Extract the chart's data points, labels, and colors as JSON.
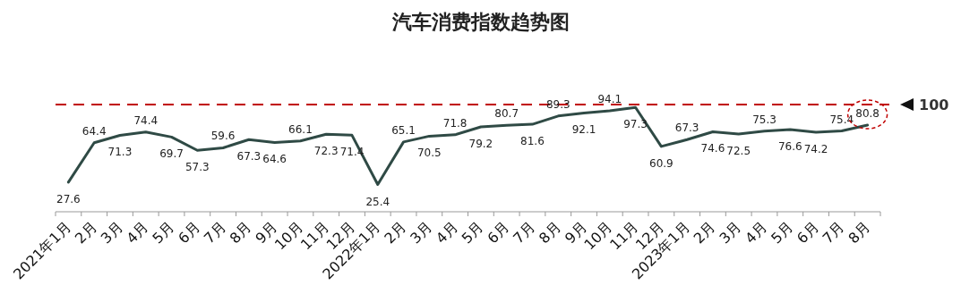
{
  "chart_data": {
    "type": "line",
    "title": "汽车消费指数趋势图",
    "categories": [
      "2021年1月",
      "2月",
      "3月",
      "4月",
      "5月",
      "6月",
      "7月",
      "8月",
      "9月",
      "10月",
      "11月",
      "12月",
      "2022年1月",
      "2月",
      "3月",
      "4月",
      "5月",
      "6月",
      "7月",
      "8月",
      "9月",
      "10月",
      "11月",
      "12月",
      "2023年1月",
      "2月",
      "3月",
      "4月",
      "5月",
      "6月",
      "7月",
      "8月"
    ],
    "values": [
      27.6,
      64.4,
      71.3,
      74.4,
      69.7,
      57.3,
      59.6,
      67.3,
      64.6,
      66.1,
      72.3,
      71.4,
      25.4,
      65.1,
      70.5,
      71.8,
      79.2,
      80.7,
      81.6,
      89.3,
      92.1,
      94.1,
      97.3,
      60.9,
      67.3,
      74.6,
      72.5,
      75.3,
      76.6,
      74.2,
      75.4,
      80.8
    ],
    "color": "#2f4a45",
    "data_labels": true,
    "tick_labels": "x",
    "ref_lines": [
      {
        "axis": "y",
        "value": 100,
        "label": "100",
        "color": "#c00000",
        "line_style": "dashed"
      }
    ]
  }
}
